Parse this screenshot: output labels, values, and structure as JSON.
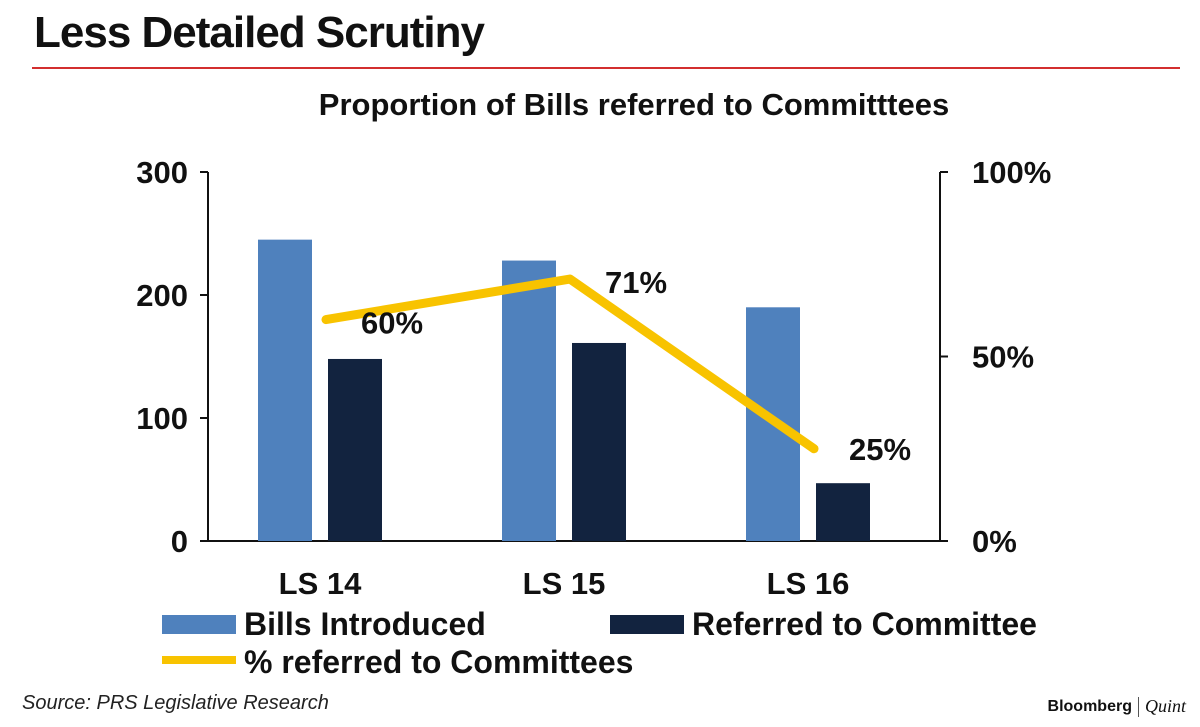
{
  "headline": "Less Detailed Scrutiny",
  "source": "Source: PRS Legislative Research",
  "brand": {
    "name": "Bloomberg",
    "partner": "Quint"
  },
  "colors": {
    "rule": "#d32f2f",
    "bills_introduced": "#4f81bd",
    "referred": "#12233f",
    "percent_line": "#f8c300",
    "axis": "#111111"
  },
  "chart_data": {
    "type": "bar",
    "title": "Proportion of Bills referred to Committtees",
    "categories": [
      "LS 14",
      "LS 15",
      "LS 16"
    ],
    "series": [
      {
        "name": "Bills Introduced",
        "type": "bar",
        "axis": "left",
        "values": [
          245,
          228,
          190
        ]
      },
      {
        "name": "Referred to Committee",
        "type": "bar",
        "axis": "left",
        "values": [
          148,
          161,
          47
        ]
      },
      {
        "name": "% referred to Committees",
        "type": "line",
        "axis": "right",
        "values": [
          60,
          71,
          25
        ],
        "labels": [
          "60%",
          "71%",
          "25%"
        ]
      }
    ],
    "y_left": {
      "range": [
        0,
        300
      ],
      "ticks": [
        0,
        100,
        200,
        300
      ],
      "tick_labels": [
        "0",
        "100",
        "200",
        "300"
      ]
    },
    "y_right": {
      "range": [
        0,
        100
      ],
      "ticks": [
        0,
        50,
        100
      ],
      "tick_labels": [
        "0%",
        "50%",
        "100%"
      ]
    },
    "grid": false,
    "legend": "bottom"
  }
}
